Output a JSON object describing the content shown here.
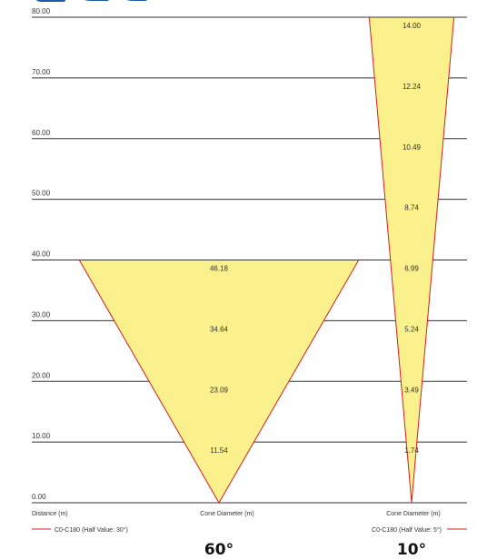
{
  "colors": {
    "fill": "#FAF08C",
    "stroke": "#D81E1E",
    "grid": "#333333",
    "text": "#333333",
    "header": "#1E5AA8"
  },
  "chart_data": [
    {
      "type": "area",
      "title": "",
      "xlabel": "Cone Diameter (m)",
      "ylabel": "Distance (m)",
      "ylim": [
        0,
        80
      ],
      "y_ticks": [
        "0.00",
        "10.00",
        "20.00",
        "30.00",
        "40.00",
        "50.00",
        "60.00",
        "70.00",
        "80.00"
      ],
      "series": [
        {
          "name": "C0-C180 (Half Value: 30°)",
          "distance_max": 40,
          "points": [
            {
              "distance": 10,
              "diameter": "11.54"
            },
            {
              "distance": 20,
              "diameter": "23.09"
            },
            {
              "distance": 30,
              "diameter": "34.64"
            },
            {
              "distance": 40,
              "diameter": "46.18"
            }
          ]
        }
      ],
      "beam_angle_label": "60°"
    },
    {
      "type": "area",
      "title": "",
      "xlabel": "Cone Diameter (m)",
      "ylabel": "",
      "ylim": [
        0,
        80
      ],
      "series": [
        {
          "name": "C0-C180 (Half Value: 5°)",
          "distance_max": 80,
          "points": [
            {
              "distance": 10,
              "diameter": "1.74"
            },
            {
              "distance": 20,
              "diameter": "3.49"
            },
            {
              "distance": 30,
              "diameter": "5.24"
            },
            {
              "distance": 40,
              "diameter": "6.99"
            },
            {
              "distance": 50,
              "diameter": "8.74"
            },
            {
              "distance": 60,
              "diameter": "10.49"
            },
            {
              "distance": 70,
              "diameter": "12.24"
            },
            {
              "distance": 80,
              "diameter": "14.00"
            }
          ]
        }
      ],
      "beam_angle_label": "10°"
    }
  ]
}
